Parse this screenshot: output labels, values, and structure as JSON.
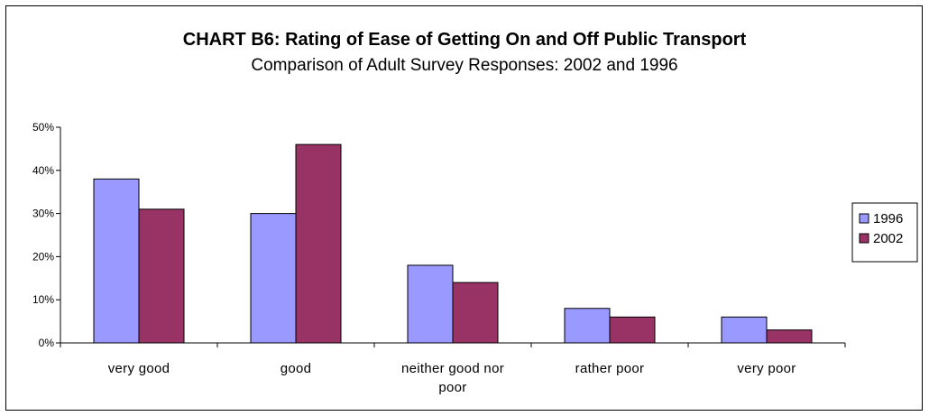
{
  "chart_data": {
    "type": "bar",
    "title": "CHART B6: Rating of Ease of Getting On and Off Public Transport",
    "subtitle": "Comparison of Adult Survey Responses: 2002 and 1996",
    "categories": [
      "very good",
      "good",
      "neither good nor poor",
      "rather poor",
      "very poor"
    ],
    "category_lines": [
      [
        "very good"
      ],
      [
        "good"
      ],
      [
        "neither good nor",
        "poor"
      ],
      [
        "rather poor"
      ],
      [
        "very poor"
      ]
    ],
    "series": [
      {
        "name": "1996",
        "color": "#9999ff",
        "values": [
          38,
          30,
          18,
          8,
          6
        ]
      },
      {
        "name": "2002",
        "color": "#993366",
        "values": [
          31,
          46,
          14,
          6,
          3
        ]
      }
    ],
    "y_ticks": [
      {
        "value": 0,
        "label": "0%"
      },
      {
        "value": 10,
        "label": "10%"
      },
      {
        "value": 20,
        "label": "20%"
      },
      {
        "value": 30,
        "label": "30%"
      },
      {
        "value": 40,
        "label": "40%"
      },
      {
        "value": 50,
        "label": "50%"
      }
    ],
    "ylim": [
      0,
      50
    ],
    "xlabel": "",
    "ylabel": "",
    "grid": false,
    "legend_position": "right"
  }
}
